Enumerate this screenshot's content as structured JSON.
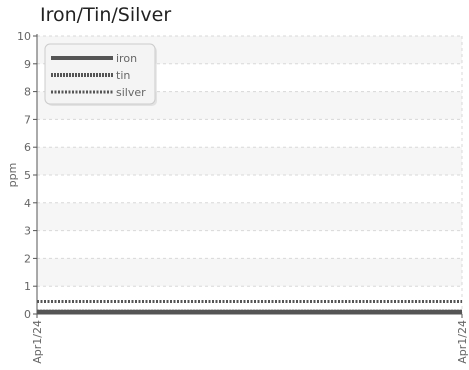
{
  "chart_data": {
    "type": "line",
    "title": "Iron/Tin/Silver",
    "xlabel": "",
    "ylabel": "ppm",
    "ylim": [
      0,
      10
    ],
    "yticks": [
      0,
      1,
      2,
      3,
      4,
      5,
      6,
      7,
      8,
      9,
      10
    ],
    "x": [
      "Apr1/24",
      "Apr1/24"
    ],
    "grid": true,
    "legend_position": "top-left",
    "series": [
      {
        "name": "iron",
        "values": [
          0.08,
          0.08
        ],
        "color": "#555555",
        "style": "solid"
      },
      {
        "name": "tin",
        "values": [
          0.08,
          0.08
        ],
        "color": "#555555",
        "style": "dense-dotted"
      },
      {
        "name": "silver",
        "values": [
          0.45,
          0.45
        ],
        "color": "#555555",
        "style": "dotted"
      }
    ]
  }
}
